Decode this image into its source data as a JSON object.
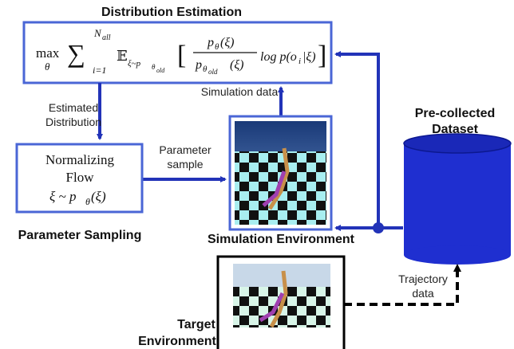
{
  "title": "Distribution Estimation",
  "formula": {
    "max": "max",
    "max_sub": "θ",
    "sum": "∑",
    "sum_upper": "N",
    "sum_upper_sub": "all",
    "sum_lower": "i=1",
    "expectation": "𝔼",
    "expectation_sub": "ξ~p",
    "expectation_sub_sub": "θ",
    "expectation_sub_sub2": "old",
    "open_bracket": "[",
    "numerator": "p",
    "numerator_sub": "θ",
    "numerator_arg": "(ξ)",
    "denominator": "p",
    "denominator_sub": "θ",
    "denominator_sub2": "old",
    "denominator_arg": "(ξ)",
    "log_term": "log p(o",
    "log_sub": "i",
    "log_end": "|ξ)",
    "close_bracket": "]"
  },
  "estimated_distribution": [
    "Estimated",
    "Distribution"
  ],
  "simulation_data": "Simulation data",
  "normalizing_flow": {
    "lines": [
      "Normalizing",
      "Flow"
    ],
    "sample": "ξ ~ p",
    "sample_sub": "θ",
    "sample_arg": "(ξ)"
  },
  "parameter_sample": [
    "Parameter",
    "sample"
  ],
  "parameter_sampling": "Parameter Sampling",
  "simulation_environment": "Simulation Environment",
  "dataset": [
    "Pre-collected",
    "Dataset"
  ],
  "trajectory_data": [
    "Trajectory",
    "data"
  ],
  "target_environment": [
    "Target",
    "Environment"
  ]
}
